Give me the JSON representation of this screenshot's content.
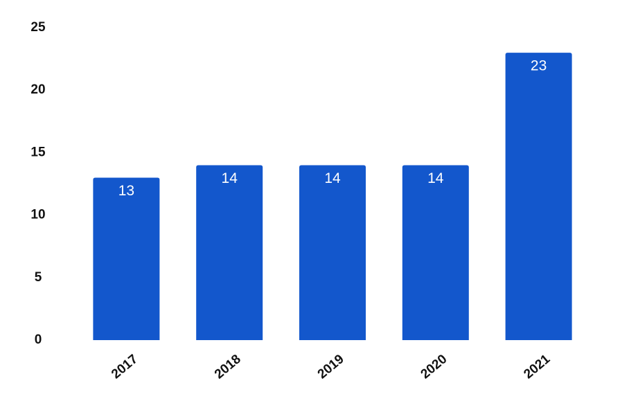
{
  "chart_data": {
    "type": "bar",
    "categories": [
      "2017",
      "2018",
      "2019",
      "2020",
      "2021"
    ],
    "values": [
      13,
      14,
      14,
      14,
      23
    ],
    "color": "#1357cc",
    "ylim": [
      0,
      25
    ],
    "yticks": [
      0,
      5,
      10,
      15,
      20,
      25
    ],
    "grid": false
  }
}
